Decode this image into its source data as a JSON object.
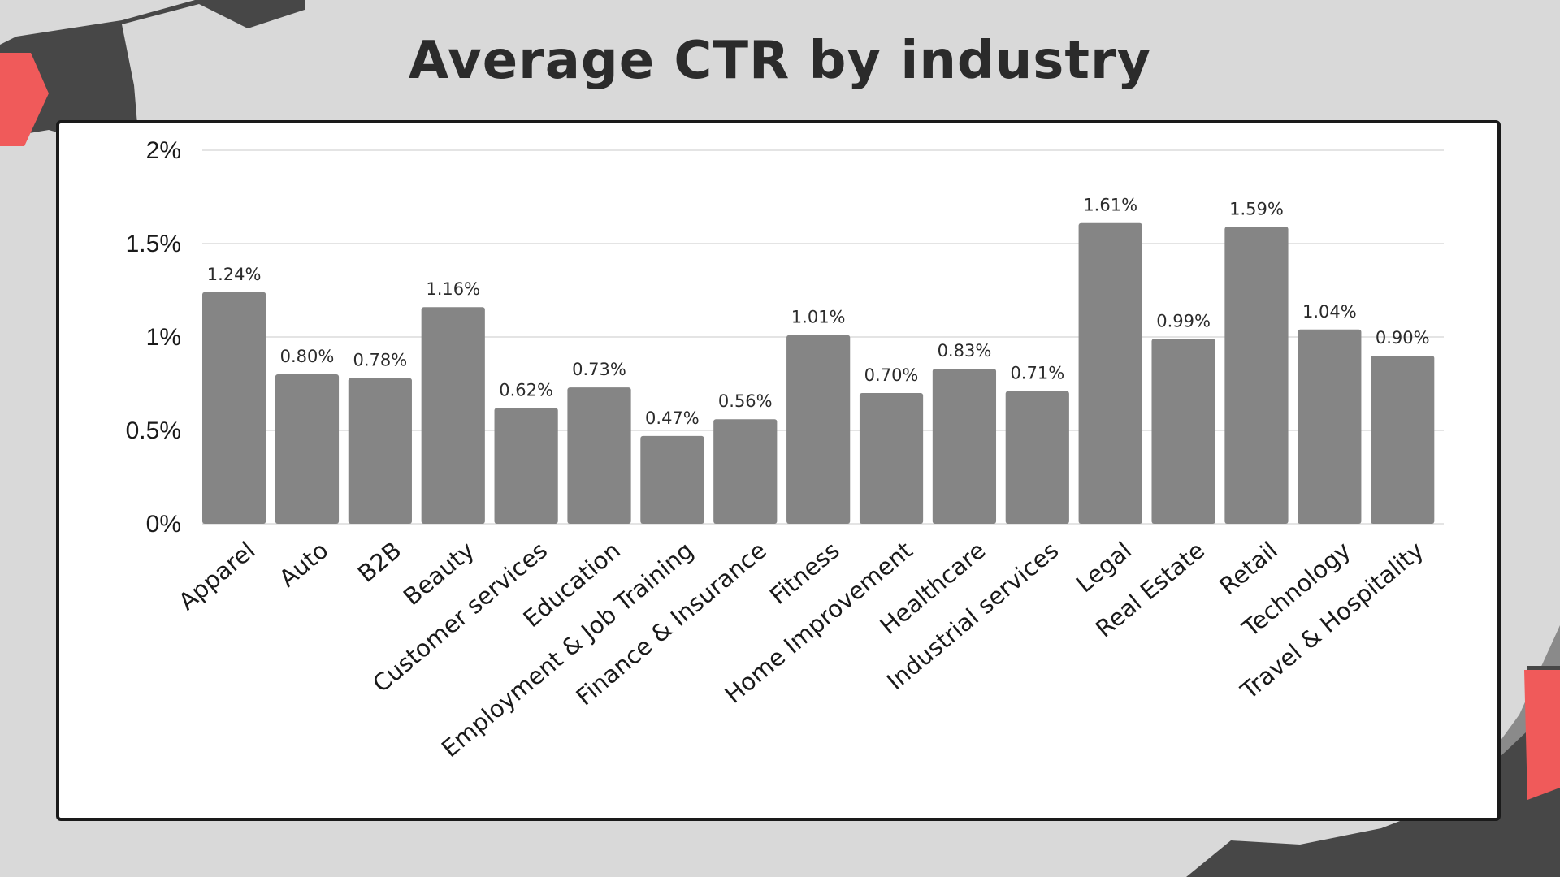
{
  "title": "Average CTR by industry",
  "colors": {
    "background": "#d9d9d9",
    "bar": "#858585",
    "accent": "#f05a5a",
    "dark_shape": "#474747",
    "mid_shape": "#8a8a8a"
  },
  "chart_data": {
    "type": "bar",
    "title": "Average CTR by industry",
    "xlabel": "",
    "ylabel": "",
    "ylim": [
      0,
      2
    ],
    "yticks": [
      {
        "value": 0,
        "label": "0%"
      },
      {
        "value": 0.5,
        "label": "0.5%"
      },
      {
        "value": 1,
        "label": "1%"
      },
      {
        "value": 1.5,
        "label": "1.5%"
      },
      {
        "value": 2,
        "label": "2%"
      }
    ],
    "grid": true,
    "legend": "none",
    "categories": [
      "Apparel",
      "Auto",
      "B2B",
      "Beauty",
      "Customer services",
      "Education",
      "Employment & Job Training",
      "Finance & Insurance",
      "Fitness",
      "Home Improvement",
      "Healthcare",
      "Industrial services",
      "Legal",
      "Real Estate",
      "Retail",
      "Technology",
      "Travel & Hospitality"
    ],
    "values": [
      1.24,
      0.8,
      0.78,
      1.16,
      0.62,
      0.73,
      0.47,
      0.56,
      1.01,
      0.7,
      0.83,
      0.71,
      1.61,
      0.99,
      1.59,
      1.04,
      0.9
    ],
    "data_labels": [
      "1.24%",
      "0.80%",
      "0.78%",
      "1.16%",
      "0.62%",
      "0.73%",
      "0.47%",
      "0.56%",
      "1.01%",
      "0.70%",
      "0.83%",
      "0.71%",
      "1.61%",
      "0.99%",
      "1.59%",
      "1.04%",
      "0.90%"
    ]
  }
}
